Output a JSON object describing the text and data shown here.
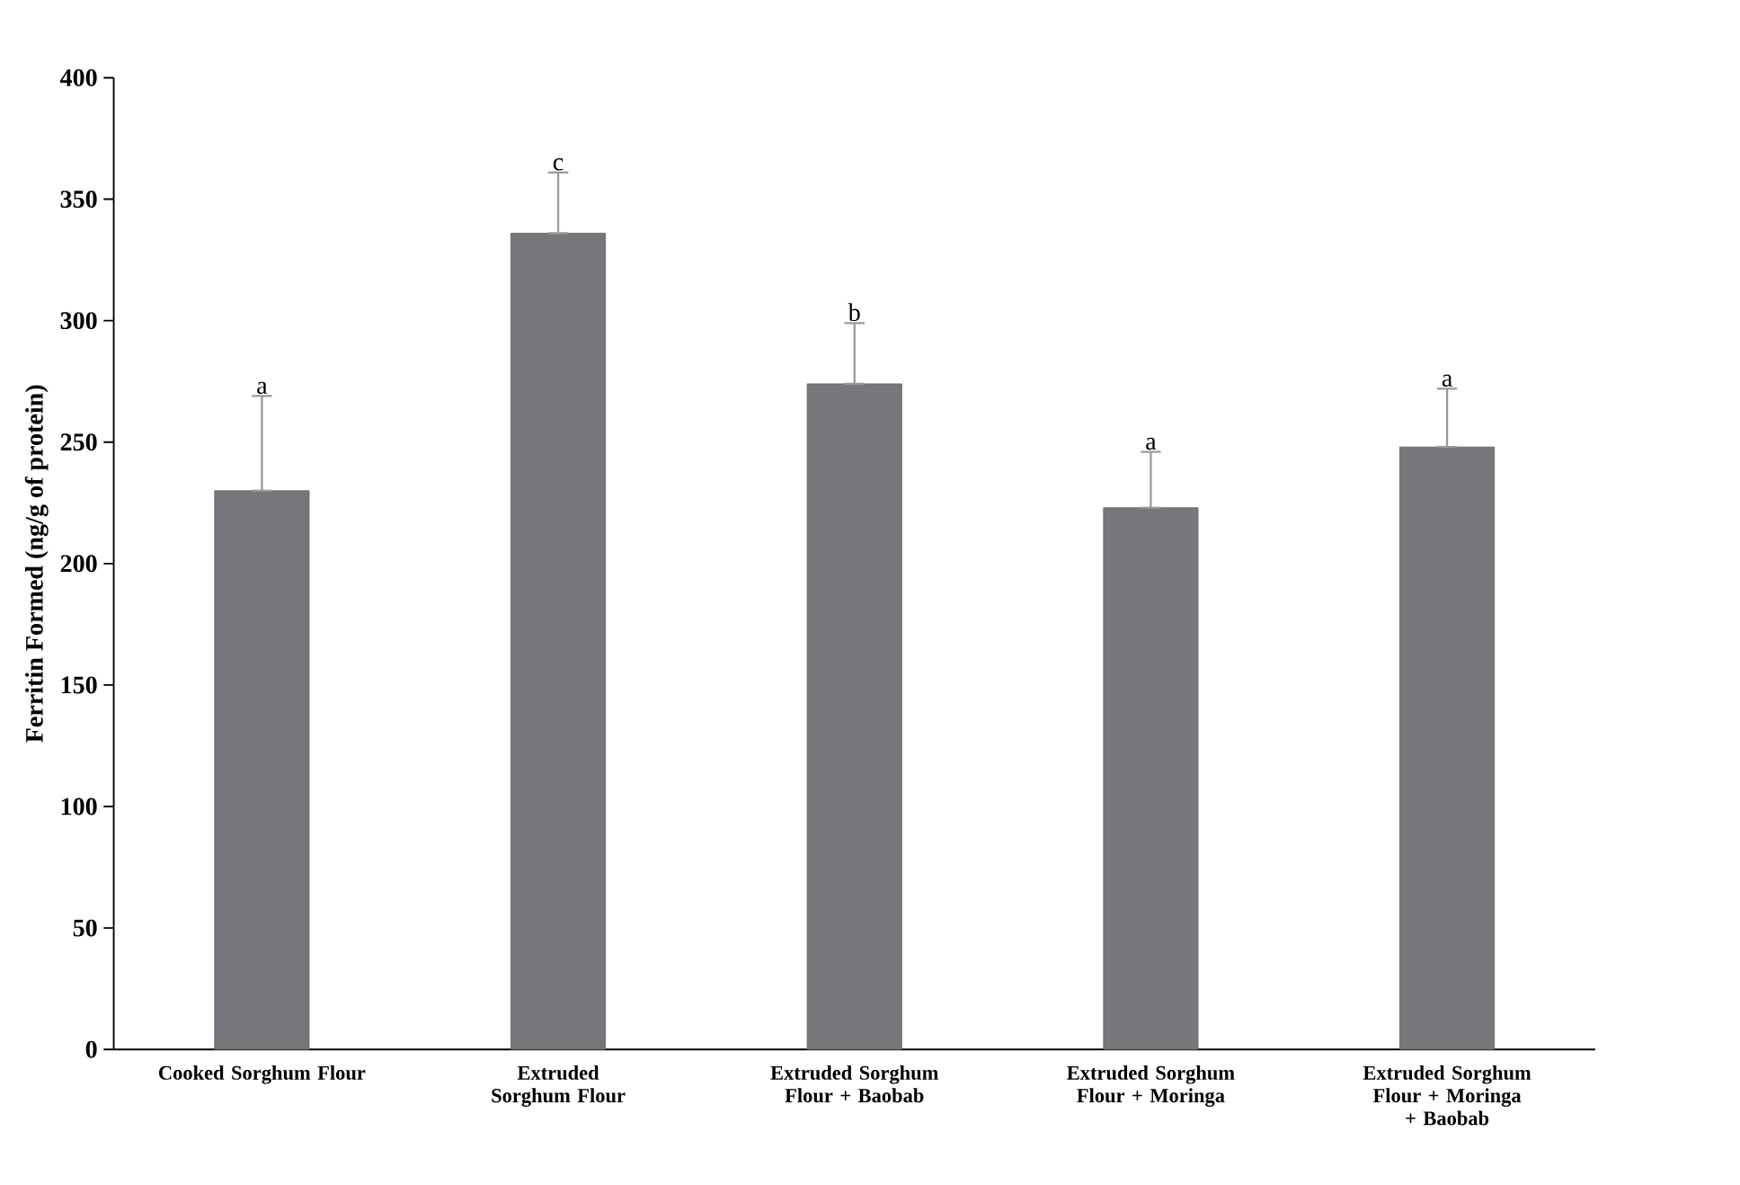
{
  "chart_data": {
    "type": "bar",
    "ylabel": "Ferritin Formed (ng/g of protein)",
    "categories": [
      "Cooked Sorghum Flour",
      "Extruded Sorghum Flour",
      "Extruded Sorghum Flour + Baobab",
      "Extruded Sorghum Flour + Moringa",
      "Extruded Sorghum Flour + Moringa + Baobab"
    ],
    "values": [
      230,
      336,
      274,
      223,
      248
    ],
    "errors": [
      [
        230,
        269
      ],
      [
        336,
        361
      ],
      [
        274,
        299
      ],
      [
        223,
        246
      ],
      [
        248,
        272
      ]
    ],
    "color": "#76777b",
    "ylim": [
      0,
      400
    ],
    "yticks": [
      0,
      50,
      100,
      150,
      200,
      250,
      300,
      350,
      400
    ],
    "grid": false,
    "annotations": [
      "a",
      "c",
      "b",
      "a",
      "a"
    ]
  }
}
